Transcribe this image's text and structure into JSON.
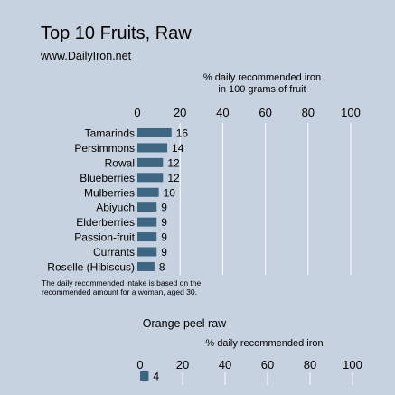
{
  "title": "Top 10 Fruits, Raw",
  "subtitle": "www.DailyIron.net",
  "footnote": [
    "The daily recommended intake is based on the",
    "recommended amount for a woman, aged 30."
  ],
  "colors": {
    "background": "#c6d2e0",
    "bar": "#3d6682",
    "grid": "#ffffff"
  },
  "chart_data": [
    {
      "type": "bar",
      "orientation": "horizontal",
      "axis_title": [
        "% daily recommended iron",
        "in 100 grams of fruit"
      ],
      "xlim": [
        0,
        100
      ],
      "ticks": [
        0,
        20,
        40,
        60,
        80,
        100
      ],
      "grid": true,
      "categories": [
        "Tamarinds",
        "Persimmons",
        "Rowal",
        "Blueberries",
        "Mulberries",
        "Abiyuch",
        "Elderberries",
        "Passion-fruit",
        "Currants",
        "Roselle (Hibiscus)"
      ],
      "values": [
        16,
        14,
        12,
        12,
        10,
        9,
        9,
        9,
        9,
        8
      ]
    },
    {
      "type": "bar",
      "orientation": "horizontal",
      "title": "Orange peel raw",
      "axis_title": [
        "% daily recommended iron"
      ],
      "xlim": [
        0,
        100
      ],
      "ticks": [
        0,
        20,
        40,
        60,
        80,
        100
      ],
      "grid": true,
      "categories": [
        ""
      ],
      "values": [
        4
      ]
    }
  ]
}
